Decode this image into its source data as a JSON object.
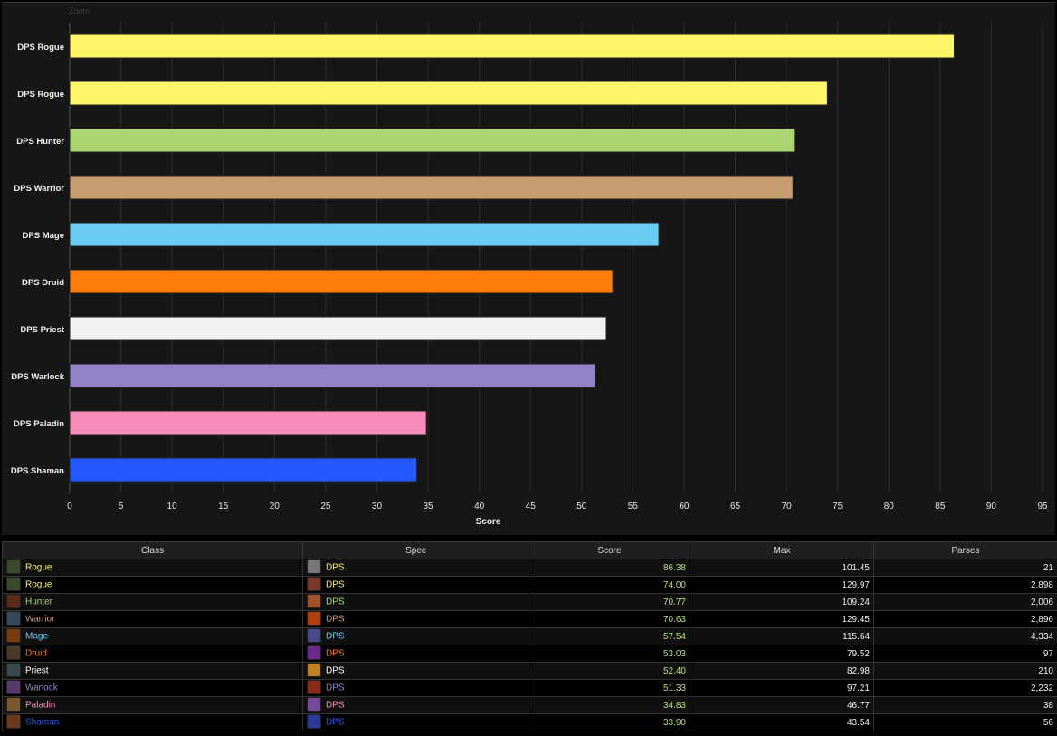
{
  "chart_data": {
    "type": "bar",
    "orientation": "horizontal",
    "zoom_label": "Zoom",
    "xlabel": "Score",
    "xlim": [
      0,
      95
    ],
    "xticks": [
      0,
      5,
      10,
      15,
      20,
      25,
      30,
      35,
      40,
      45,
      50,
      55,
      60,
      65,
      70,
      75,
      80,
      85,
      90,
      95
    ],
    "grid": true,
    "categories": [
      "DPS Rogue",
      "DPS Rogue",
      "DPS Hunter",
      "DPS Warrior",
      "DPS Mage",
      "DPS Druid",
      "DPS Priest",
      "DPS Warlock",
      "DPS Paladin",
      "DPS Shaman"
    ],
    "values": [
      86.38,
      74.0,
      70.77,
      70.63,
      57.54,
      53.03,
      52.4,
      51.33,
      34.83,
      33.9
    ],
    "colors": [
      "#fff569",
      "#fff569",
      "#abd473",
      "#c79c6e",
      "#69ccf0",
      "#ff7d0a",
      "#f0f0f0",
      "#9482c9",
      "#f58cba",
      "#2459ff"
    ]
  },
  "table": {
    "headers": [
      "Class",
      "Spec",
      "Score",
      "Max",
      "Parses"
    ],
    "rows": [
      {
        "class": "Rogue",
        "spec": "DPS",
        "score": "86.38",
        "max": "101.45",
        "parses": "21",
        "color": "#fff569",
        "class_icon": "rogue-icon",
        "spec_icon": "assassination-icon"
      },
      {
        "class": "Rogue",
        "spec": "DPS",
        "score": "74.00",
        "max": "129.97",
        "parses": "2,898",
        "color": "#fff569",
        "class_icon": "rogue-icon",
        "spec_icon": "combat-icon"
      },
      {
        "class": "Hunter",
        "spec": "DPS",
        "score": "70.77",
        "max": "109.24",
        "parses": "2,006",
        "color": "#abd473",
        "class_icon": "hunter-icon",
        "spec_icon": "beast-mastery-icon"
      },
      {
        "class": "Warrior",
        "spec": "DPS",
        "score": "70.63",
        "max": "129.45",
        "parses": "2,896",
        "color": "#c79c6e",
        "class_icon": "warrior-icon",
        "spec_icon": "fury-icon"
      },
      {
        "class": "Mage",
        "spec": "DPS",
        "score": "57.54",
        "max": "115.64",
        "parses": "4,334",
        "color": "#69ccf0",
        "class_icon": "mage-icon",
        "spec_icon": "frost-icon"
      },
      {
        "class": "Druid",
        "spec": "DPS",
        "score": "53.03",
        "max": "79.52",
        "parses": "97",
        "color": "#ff7d0a",
        "class_icon": "druid-icon",
        "spec_icon": "balance-icon"
      },
      {
        "class": "Priest",
        "spec": "DPS",
        "score": "52.40",
        "max": "82.98",
        "parses": "210",
        "color": "#ffffff",
        "class_icon": "priest-icon",
        "spec_icon": "shadow-icon"
      },
      {
        "class": "Warlock",
        "spec": "DPS",
        "score": "51.33",
        "max": "97.21",
        "parses": "2,232",
        "color": "#9482c9",
        "class_icon": "warlock-icon",
        "spec_icon": "destruction-icon"
      },
      {
        "class": "Paladin",
        "spec": "DPS",
        "score": "34.83",
        "max": "46.77",
        "parses": "38",
        "color": "#f58cba",
        "class_icon": "paladin-icon",
        "spec_icon": "retribution-icon"
      },
      {
        "class": "Shaman",
        "spec": "DPS",
        "score": "33.90",
        "max": "43.54",
        "parses": "56",
        "color": "#2459ff",
        "class_icon": "shaman-icon",
        "spec_icon": "enhancement-icon"
      }
    ]
  }
}
